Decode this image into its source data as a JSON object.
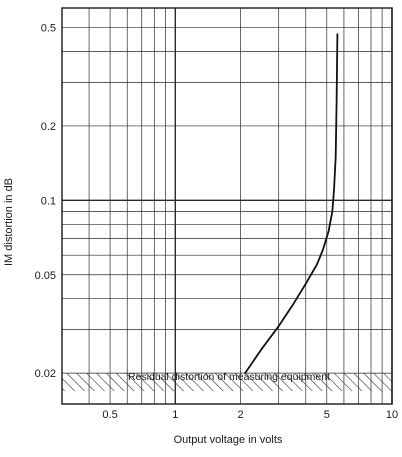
{
  "chart_data": {
    "type": "line",
    "xlabel": "Output voltage in volts",
    "ylabel": "IM distortion in dB",
    "x_scale": "log",
    "y_scale": "log",
    "xlim": [
      0.3,
      10
    ],
    "ylim": [
      0.015,
      0.6
    ],
    "x_ticks": [
      {
        "value": 0.5,
        "label": "0.5"
      },
      {
        "value": 1,
        "label": "1"
      },
      {
        "value": 2,
        "label": "2"
      },
      {
        "value": 5,
        "label": "5"
      },
      {
        "value": 10,
        "label": "10"
      }
    ],
    "y_ticks": [
      {
        "value": 0.02,
        "label": "0.02"
      },
      {
        "value": 0.05,
        "label": "0.05"
      },
      {
        "value": 0.1,
        "label": "0.1"
      },
      {
        "value": 0.2,
        "label": "0.2"
      },
      {
        "value": 0.5,
        "label": "0.5"
      }
    ],
    "x_minor_grid": [
      0.3,
      0.4,
      0.5,
      0.6,
      0.7,
      0.8,
      0.9,
      1,
      2,
      3,
      4,
      5,
      6,
      7,
      8,
      9,
      10
    ],
    "y_minor_grid": [
      0.02,
      0.03,
      0.04,
      0.05,
      0.06,
      0.07,
      0.08,
      0.09,
      0.1,
      0.2,
      0.3,
      0.4,
      0.5
    ],
    "x_major_grid": [
      1,
      10
    ],
    "y_major_grid": [
      0.1
    ],
    "grid": true,
    "series": [
      {
        "x": [
          2.1,
          2.5,
          3.0,
          3.5,
          4.0,
          4.5,
          4.8,
          5.1,
          5.3,
          5.4,
          5.5,
          5.55,
          5.6
        ],
        "y": [
          0.02,
          0.025,
          0.031,
          0.038,
          0.046,
          0.055,
          0.063,
          0.075,
          0.09,
          0.11,
          0.15,
          0.25,
          0.47
        ]
      }
    ],
    "hatched_band": {
      "y_top": 0.02,
      "label": "Residual distortion of measuring equipment"
    }
  }
}
